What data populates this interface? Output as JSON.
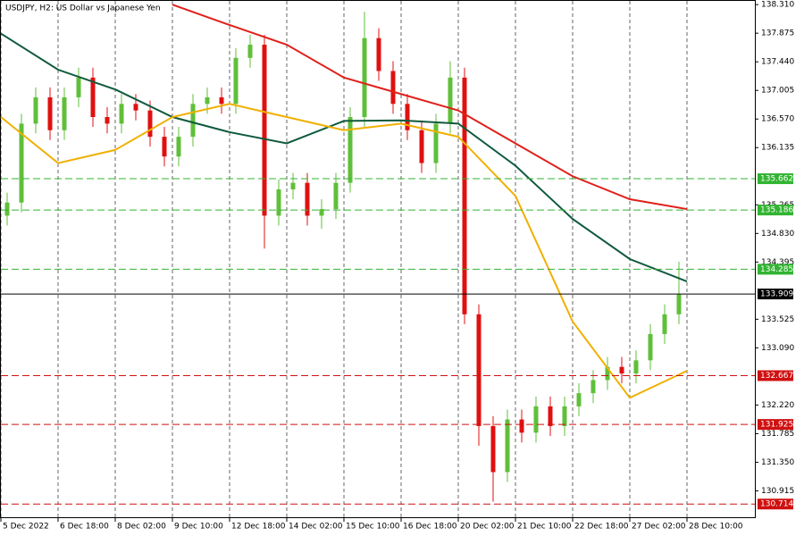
{
  "chart_data": {
    "type": "candlestick",
    "title": "USDJPY, H2:  US Dollar vs Japanese Yen",
    "ylim": [
      130.5,
      138.38
    ],
    "yticks": [
      {
        "value": 138.31,
        "label": "138.310"
      },
      137.875,
      {
        "value": 137.44,
        "label": "137.440"
      },
      137.005,
      {
        "value": 136.57,
        "label": "136.570"
      },
      136.135,
      135.265,
      {
        "value": 134.83,
        "label": "134.830"
      },
      134.395,
      133.525,
      {
        "value": 133.09,
        "label": "133.090"
      },
      {
        "value": 132.22,
        "label": "132.220"
      },
      131.785,
      {
        "value": 131.35,
        "label": "131.350"
      },
      130.915
    ],
    "x_labels": [
      "5 Dec 2022",
      "6 Dec 18:00",
      "8 Dec 02:00",
      "9 Dec 10:00",
      "12 Dec 18:00",
      "14 Dec 02:00",
      "15 Dec 10:00",
      "16 Dec 18:00",
      "20 Dec 02:00",
      "21 Dec 10:00",
      "22 Dec 18:00",
      "27 Dec 02:00",
      "28 Dec 10:00"
    ],
    "up_color": "#5fbf3a",
    "down_color": "#e01010",
    "open": [
      135.1,
      135.3,
      136.5,
      136.9,
      136.4,
      136.9,
      137.2,
      136.6,
      136.5,
      136.8,
      136.7,
      136.3,
      136.0,
      136.3,
      136.8,
      136.9,
      136.8,
      137.5,
      137.7,
      135.1,
      135.5,
      135.6,
      135.1,
      135.2,
      135.6,
      136.6,
      137.8,
      137.3,
      136.8,
      136.4,
      135.9,
      136.5,
      137.2,
      133.6,
      131.9,
      131.2,
      132.0,
      131.8,
      132.2,
      131.9,
      132.2,
      132.4,
      132.6,
      132.8,
      132.7,
      132.9,
      133.3,
      133.6
    ],
    "high": [
      135.45,
      136.65,
      137.05,
      137.05,
      137.05,
      137.35,
      137.35,
      136.75,
      136.95,
      136.95,
      136.85,
      136.45,
      136.45,
      136.95,
      137.05,
      137.05,
      137.65,
      137.85,
      137.85,
      135.65,
      135.75,
      135.75,
      135.35,
      135.75,
      136.75,
      138.2,
      137.95,
      137.45,
      136.95,
      136.55,
      136.65,
      137.45,
      137.35,
      133.75,
      132.05,
      132.15,
      132.15,
      132.35,
      132.35,
      132.35,
      132.55,
      132.75,
      132.95,
      132.95,
      133.05,
      133.45,
      133.75,
      134.4
    ],
    "low": [
      134.95,
      135.15,
      136.35,
      136.25,
      136.25,
      136.75,
      136.45,
      136.35,
      136.35,
      136.55,
      136.15,
      135.85,
      135.85,
      136.15,
      136.65,
      136.65,
      136.65,
      137.35,
      134.6,
      134.95,
      135.35,
      134.95,
      134.9,
      135.05,
      135.45,
      136.45,
      137.15,
      136.65,
      136.25,
      135.75,
      135.75,
      136.35,
      133.45,
      131.6,
      130.75,
      131.05,
      131.65,
      131.65,
      131.75,
      131.75,
      132.05,
      132.25,
      132.45,
      132.55,
      132.55,
      132.75,
      133.15,
      133.45
    ],
    "close": [
      135.3,
      136.5,
      136.9,
      136.4,
      136.9,
      137.2,
      136.6,
      136.5,
      136.8,
      136.7,
      136.3,
      136.0,
      136.3,
      136.8,
      136.9,
      136.8,
      137.5,
      137.7,
      135.1,
      135.5,
      135.6,
      135.1,
      135.2,
      135.6,
      136.6,
      137.8,
      137.3,
      136.8,
      136.4,
      135.9,
      136.5,
      137.2,
      133.6,
      131.9,
      131.2,
      132.0,
      131.8,
      132.2,
      131.9,
      132.2,
      132.4,
      132.6,
      132.8,
      132.7,
      132.9,
      133.3,
      133.6,
      133.9
    ],
    "moving_averages": [
      {
        "color": "#e0201a",
        "values": [
          null,
          null,
          null,
          138.31,
          138.0,
          137.7,
          137.2,
          136.95,
          136.7,
          136.2,
          135.7,
          135.35,
          135.2
        ]
      },
      {
        "color": "#0e5a3c",
        "values": [
          137.87,
          137.32,
          137.02,
          136.6,
          136.37,
          136.2,
          136.54,
          136.55,
          136.5,
          135.86,
          135.05,
          134.44,
          134.1
        ]
      },
      {
        "color": "#f0b000",
        "values": [
          136.6,
          135.9,
          136.1,
          136.6,
          136.8,
          136.6,
          136.4,
          136.5,
          136.3,
          135.4,
          133.49,
          132.33,
          132.74
        ]
      }
    ],
    "levels": [
      {
        "value": 135.662,
        "color": "#32b432",
        "style": "dashed"
      },
      {
        "value": 135.186,
        "color": "#32b432",
        "style": "dashed"
      },
      {
        "value": 134.285,
        "color": "#32b432",
        "style": "dashed"
      },
      {
        "value": 133.909,
        "color": "#000000",
        "style": "solid"
      },
      {
        "value": 132.667,
        "color": "#d01010",
        "style": "dashed"
      },
      {
        "value": 131.925,
        "color": "#d01010",
        "style": "dashed"
      },
      {
        "value": 130.714,
        "color": "#d01010",
        "style": "dashed"
      }
    ]
  }
}
